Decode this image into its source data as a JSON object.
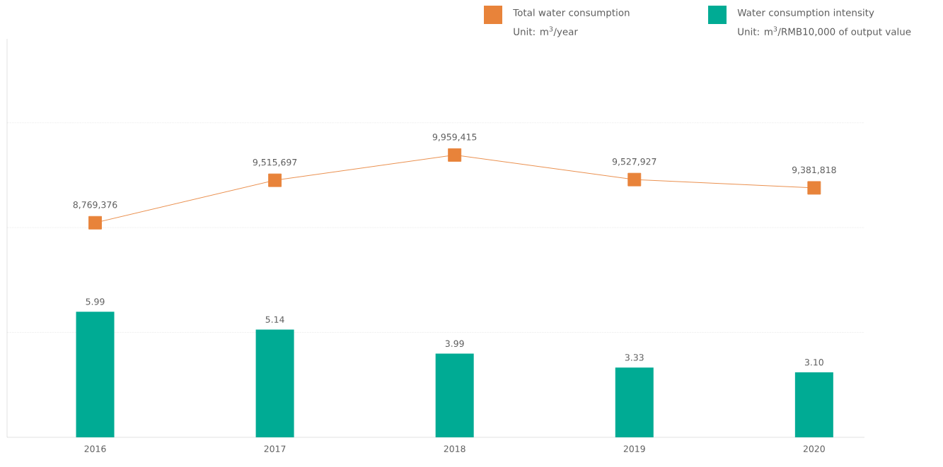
{
  "chart_data": {
    "type": "bar",
    "categories": [
      "2016",
      "2017",
      "2018",
      "2019",
      "2020"
    ],
    "series": [
      {
        "name": "Total water consumption",
        "type": "line",
        "axis": "y2",
        "color": "#e8833a",
        "values": [
          8769376,
          9515697,
          9959415,
          9527927,
          9381818
        ],
        "value_labels": [
          "8,769,376",
          "9,515,697",
          "9,959,415",
          "9,527,927",
          "9,381,818"
        ]
      },
      {
        "name": "Water consumption intensity",
        "axis": "y",
        "color": "#00ab94",
        "values": [
          5.99,
          5.14,
          3.99,
          3.33,
          3.1
        ],
        "value_labels": [
          "5.99",
          "5.14",
          "3.99",
          "3.33",
          "3.10"
        ]
      }
    ],
    "annotations": [
      "Unit: m$^{3}$/year",
      "Unit: m$^{3}$/RMB10,000 of output value"
    ],
    "ylim": [
      0,
      19
    ],
    "yticks": [
      {
        "value": 5,
        "label": null
      },
      {
        "value": 10,
        "label": null
      },
      {
        "value": 15,
        "label": null
      }
    ],
    "y2lim": [
      5000000,
      12000000
    ],
    "grid": "y",
    "legend": "top right",
    "tick_labels": "x",
    "marker": "square",
    "line_style": "solid"
  }
}
